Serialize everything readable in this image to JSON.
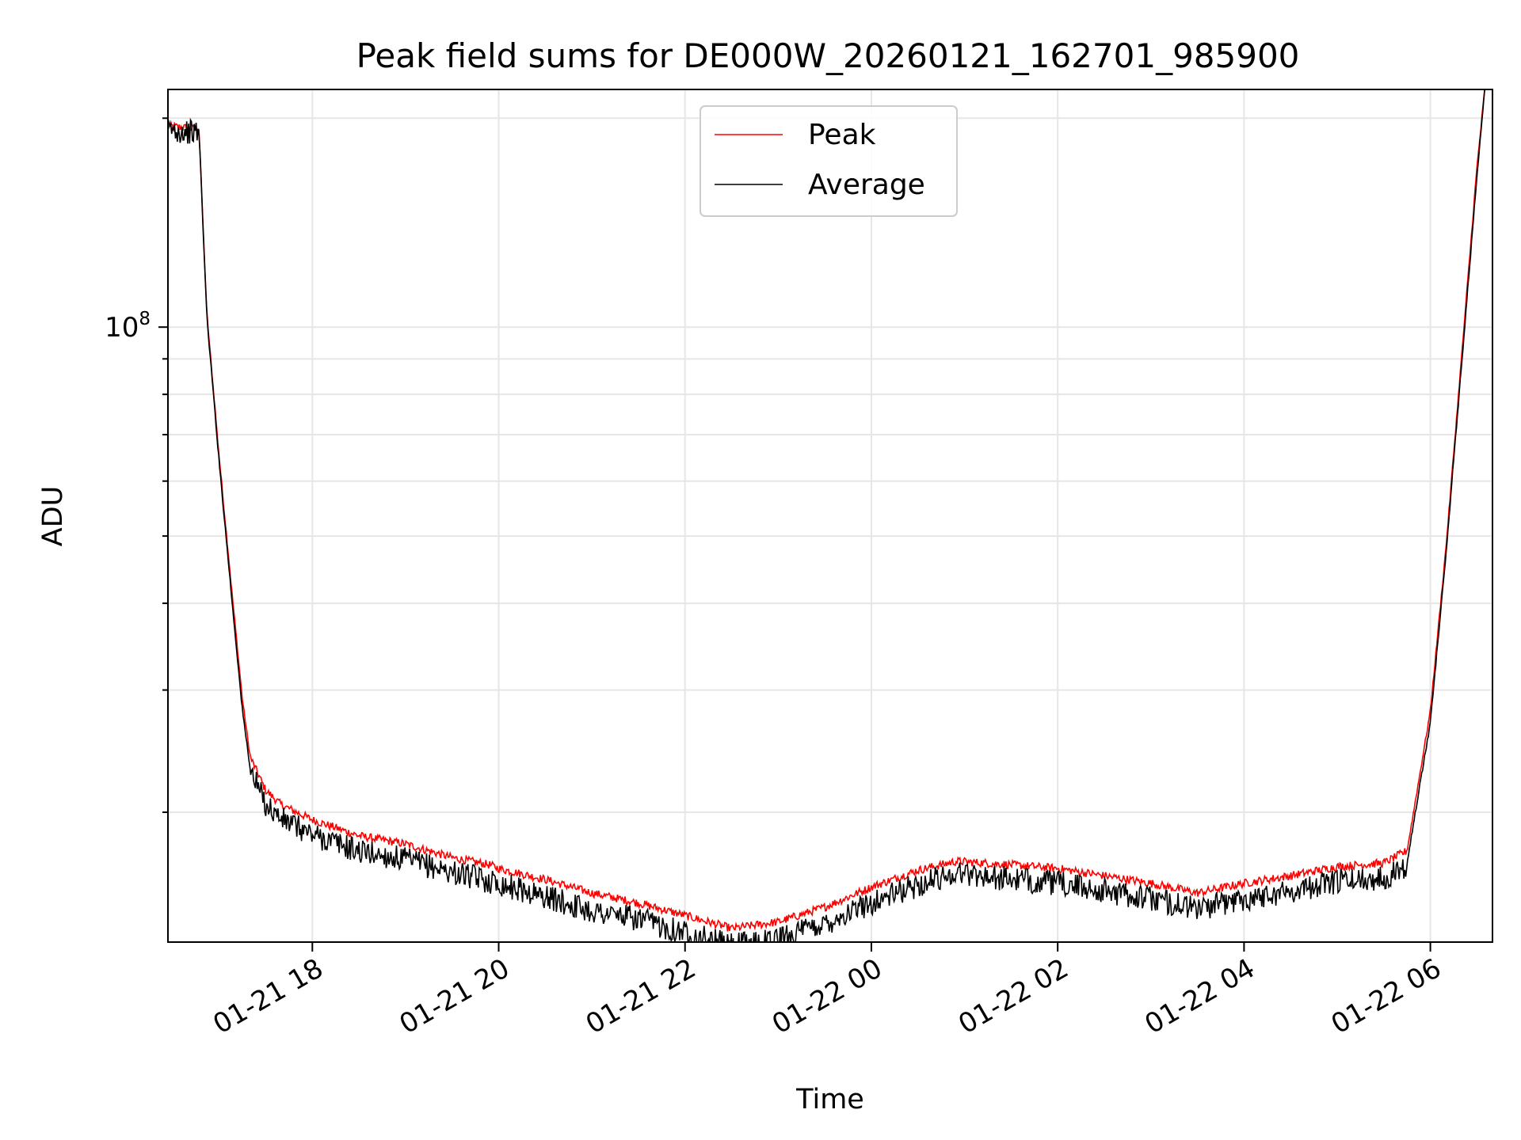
{
  "chart_data": {
    "type": "line",
    "title": "Peak field sums for DE000W_20260121_162701_985900",
    "xlabel": "Time",
    "ylabel": "ADU",
    "y_scale": "log",
    "y_tick_labels": [
      {
        "base": "10",
        "exp": "8",
        "value": 100000000
      }
    ],
    "x_tick_labels": [
      "01-21 18",
      "01-21 20",
      "01-21 22",
      "01-22 00",
      "01-22 02",
      "01-22 04",
      "01-22 06"
    ],
    "x_tick_values": [
      "2026-01-21 18:00",
      "2026-01-21 20:00",
      "2026-01-21 22:00",
      "2026-01-22 00:00",
      "2026-01-22 02:00",
      "2026-01-22 04:00",
      "2026-01-22 06:00"
    ],
    "xlim": [
      "2026-01-21 16:27",
      "2026-01-22 06:40"
    ],
    "ylim": [
      13000000,
      220000000
    ],
    "grid": true,
    "legend_position": "upper-center",
    "series": [
      {
        "name": "Peak",
        "color": "#ff0000",
        "x": [
          "2026-01-21 16:27",
          "2026-01-21 16:45",
          "2026-01-21 16:47",
          "2026-01-21 16:52",
          "2026-01-21 17:00",
          "2026-01-21 17:08",
          "2026-01-21 17:15",
          "2026-01-21 17:20",
          "2026-01-21 17:30",
          "2026-01-21 17:40",
          "2026-01-21 18:00",
          "2026-01-21 18:30",
          "2026-01-21 19:00",
          "2026-01-21 19:30",
          "2026-01-21 19:54",
          "2026-01-21 20:00",
          "2026-01-21 20:30",
          "2026-01-21 21:00",
          "2026-01-21 21:30",
          "2026-01-21 22:00",
          "2026-01-21 22:30",
          "2026-01-21 23:00",
          "2026-01-21 23:30",
          "2026-01-22 00:00",
          "2026-01-22 00:30",
          "2026-01-22 00:55",
          "2026-01-22 01:30",
          "2026-01-22 02:00",
          "2026-01-22 02:30",
          "2026-01-22 03:00",
          "2026-01-22 03:30",
          "2026-01-22 04:00",
          "2026-01-22 04:30",
          "2026-01-22 05:00",
          "2026-01-22 05:30",
          "2026-01-22 05:45",
          "2026-01-22 06:00",
          "2026-01-22 06:10",
          "2026-01-22 06:20",
          "2026-01-22 06:30",
          "2026-01-22 06:35"
        ],
        "values": [
          195000000,
          193000000,
          193000000,
          105000000,
          65000000,
          42000000,
          29000000,
          24000000,
          21500000,
          20500000,
          19500000,
          18500000,
          18000000,
          17200000,
          16800000,
          16600000,
          16000000,
          15300000,
          14800000,
          14200000,
          13600000,
          13900000,
          14600000,
          15600000,
          16500000,
          17000000,
          16800000,
          16600000,
          16200000,
          15800000,
          15300000,
          15800000,
          16200000,
          16700000,
          16900000,
          17600000,
          28000000,
          48000000,
          90000000,
          170000000,
          220000000
        ]
      },
      {
        "name": "Average",
        "color": "#000000",
        "x": [
          "2026-01-21 16:27",
          "2026-01-21 16:45",
          "2026-01-21 16:47",
          "2026-01-21 16:52",
          "2026-01-21 17:00",
          "2026-01-21 17:08",
          "2026-01-21 17:15",
          "2026-01-21 17:20",
          "2026-01-21 17:30",
          "2026-01-21 17:40",
          "2026-01-21 18:00",
          "2026-01-21 18:30",
          "2026-01-21 19:00",
          "2026-01-21 19:30",
          "2026-01-21 20:00",
          "2026-01-21 20:30",
          "2026-01-21 21:00",
          "2026-01-21 21:30",
          "2026-01-21 22:00",
          "2026-01-21 22:30",
          "2026-01-21 23:00",
          "2026-01-21 23:30",
          "2026-01-22 00:00",
          "2026-01-22 00:30",
          "2026-01-22 00:55",
          "2026-01-22 01:30",
          "2026-01-22 02:00",
          "2026-01-22 02:30",
          "2026-01-22 03:00",
          "2026-01-22 03:30",
          "2026-01-22 04:00",
          "2026-01-22 04:30",
          "2026-01-22 05:00",
          "2026-01-22 05:30",
          "2026-01-22 05:45",
          "2026-01-22 06:00",
          "2026-01-22 06:10",
          "2026-01-22 06:20",
          "2026-01-22 06:30",
          "2026-01-22 06:35"
        ],
        "values": [
          195000000,
          193000000,
          193000000,
          104000000,
          64000000,
          41000000,
          28000000,
          23200000,
          20800000,
          19800000,
          18800000,
          17800000,
          17300000,
          16600000,
          16000000,
          15300000,
          14600000,
          14200000,
          13600000,
          13000000,
          13300000,
          14000000,
          15000000,
          15900000,
          16600000,
          16200000,
          16000000,
          15600000,
          15200000,
          14700000,
          15200000,
          15600000,
          16100000,
          16300000,
          17000000,
          27000000,
          47000000,
          88000000,
          165000000,
          220000000
        ]
      }
    ]
  }
}
